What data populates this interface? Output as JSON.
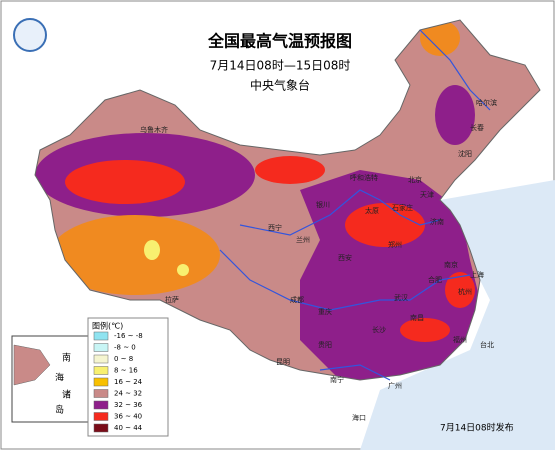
{
  "header": {
    "title": "全国最高气温预报图",
    "period": "7月14日08时—15日08时",
    "issuer": "中央气象台"
  },
  "legend": {
    "title": "图例(℃)",
    "items": [
      {
        "label": "-16 ~ -8",
        "color": "#8fe3f0"
      },
      {
        "label": "-8 ~ 0",
        "color": "#c8f5f5"
      },
      {
        "label": "0 ~ 8",
        "color": "#f5f5d0"
      },
      {
        "label": "8 ~ 16",
        "color": "#f8f070"
      },
      {
        "label": "16 ~ 24",
        "color": "#f8c000"
      },
      {
        "label": "24 ~ 32",
        "color": "#c98a88"
      },
      {
        "label": "32 ~ 36",
        "color": "#8e1f8a"
      },
      {
        "label": "36 ~ 40",
        "color": "#f52a1e"
      },
      {
        "label": "40 ~ 44",
        "color": "#7a0c18"
      }
    ]
  },
  "inset": {
    "labels": [
      "南",
      "海",
      "诸",
      "岛"
    ]
  },
  "cities": [
    "乌鲁木齐",
    "哈尔滨",
    "长春",
    "沈阳",
    "北京",
    "天津",
    "石家庄",
    "太原",
    "济南",
    "呼和浩特",
    "银川",
    "西宁",
    "兰州",
    "西安",
    "郑州",
    "拉萨",
    "成都",
    "重庆",
    "贵阳",
    "昆明",
    "南宁",
    "广州",
    "长沙",
    "武汉",
    "合肥",
    "南京",
    "上海",
    "杭州",
    "福州",
    "南昌",
    "海口",
    "台北"
  ],
  "footer": "7月14日08时发布"
}
